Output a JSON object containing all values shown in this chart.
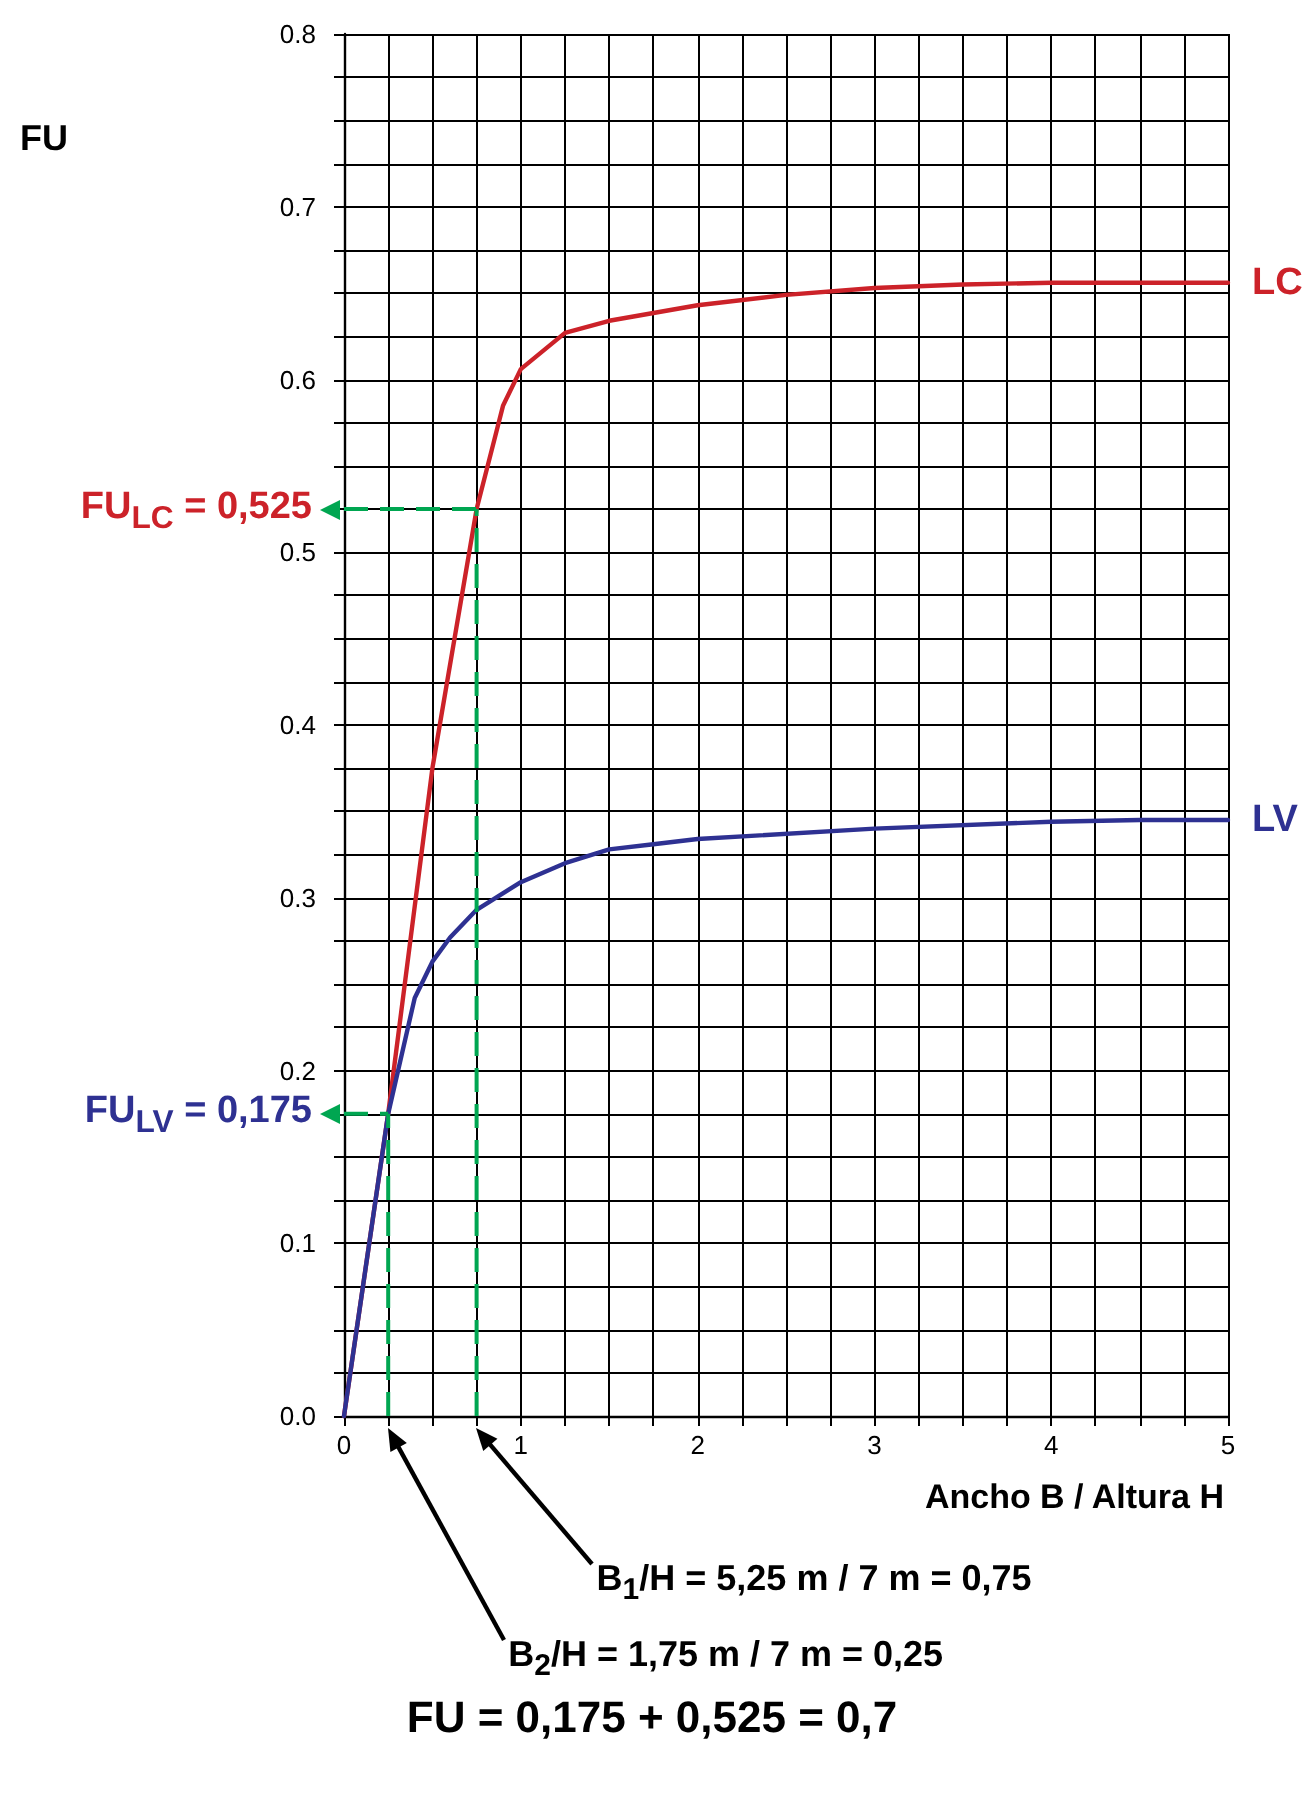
{
  "chart_data": {
    "type": "line",
    "xlabel": "Ancho B / Altura H",
    "xlim": [
      0,
      5
    ],
    "ylim": [
      0,
      0.8
    ],
    "xticks": [
      0,
      {
        "value": 0.25,
        "label": null
      },
      {
        "value": 0.5,
        "label": null
      },
      {
        "value": 0.75,
        "label": null
      },
      1,
      {
        "value": 1.25,
        "label": null
      },
      {
        "value": 1.5,
        "label": null
      },
      {
        "value": 1.75,
        "label": null
      },
      2,
      {
        "value": 2.25,
        "label": null
      },
      {
        "value": 2.5,
        "label": null
      },
      {
        "value": 2.75,
        "label": null
      },
      3,
      {
        "value": 3.25,
        "label": null
      },
      {
        "value": 3.5,
        "label": null
      },
      {
        "value": 3.75,
        "label": null
      },
      4,
      {
        "value": 4.25,
        "label": null
      },
      {
        "value": 4.5,
        "label": null
      },
      {
        "value": 4.75,
        "label": null
      },
      5
    ],
    "yticks": [
      {
        "value": 0,
        "label": "0.0"
      },
      {
        "value": 0.025,
        "label": null
      },
      {
        "value": 0.05,
        "label": null
      },
      {
        "value": 0.075,
        "label": null
      },
      0.1,
      {
        "value": 0.125,
        "label": null
      },
      {
        "value": 0.15,
        "label": null
      },
      {
        "value": 0.175,
        "label": null
      },
      0.2,
      {
        "value": 0.225,
        "label": null
      },
      {
        "value": 0.25,
        "label": null
      },
      {
        "value": 0.275,
        "label": null
      },
      0.3,
      {
        "value": 0.325,
        "label": null
      },
      {
        "value": 0.35,
        "label": null
      },
      {
        "value": 0.375,
        "label": null
      },
      0.4,
      {
        "value": 0.425,
        "label": null
      },
      {
        "value": 0.45,
        "label": null
      },
      {
        "value": 0.475,
        "label": null
      },
      0.5,
      {
        "value": 0.525,
        "label": null
      },
      {
        "value": 0.55,
        "label": null
      },
      {
        "value": 0.575,
        "label": null
      },
      0.6,
      {
        "value": 0.625,
        "label": null
      },
      {
        "value": 0.65,
        "label": null
      },
      {
        "value": 0.675,
        "label": null
      },
      0.7,
      {
        "value": 0.725,
        "label": null
      },
      {
        "value": 0.75,
        "label": null
      },
      {
        "value": 0.775,
        "label": null
      },
      0.8
    ],
    "grid": true,
    "marker": "none",
    "legend": false,
    "series": [
      {
        "name": "LC",
        "color": "#cc2229",
        "x": [
          0,
          0.1,
          0.25,
          0.5,
          0.75,
          0.85,
          0.9,
          1,
          1.25,
          1.5,
          2,
          2.5,
          3,
          3.5,
          4,
          5
        ],
        "values": [
          0,
          0.07,
          0.175,
          0.375,
          0.525,
          0.565,
          0.585,
          0.606,
          0.627,
          0.634,
          0.643,
          0.649,
          0.653,
          0.655,
          0.656,
          0.656
        ]
      },
      {
        "name": "LV",
        "color": "#2e3192",
        "x": [
          0,
          0.1,
          0.25,
          0.4,
          0.5,
          0.6,
          0.75,
          1,
          1.25,
          1.5,
          1.75,
          2,
          3,
          4,
          4.5,
          5
        ],
        "values": [
          0,
          0.07,
          0.175,
          0.242,
          0.263,
          0.277,
          0.293,
          0.309,
          0.32,
          0.328,
          0.331,
          0.334,
          0.34,
          0.344,
          0.345,
          0.345
        ]
      }
    ],
    "ref_lines": [
      {
        "axis": "y",
        "value": 0.525,
        "label": "FU$_{LC}$ = 0,525",
        "color": "#00a651",
        "line_style": "dashed"
      },
      {
        "axis": "y",
        "value": 0.175,
        "label": "FU$_{LV}$ = 0,175",
        "color": "#00a651",
        "line_style": "dashed"
      },
      {
        "axis": "x",
        "value": 0.75,
        "color": "#00a651",
        "line_style": "dashed"
      },
      {
        "axis": "x",
        "value": 0.25,
        "color": "#00a651",
        "line_style": "dashed"
      }
    ],
    "annotations": [
      "B$_{1}$/H = 5,25 m / 7 m = 0,75",
      "B$_{2}$/H = 1,75 m / 7 m = 0,25",
      "FU",
      "FU = 0,175 + 0,525 = 0,7"
    ]
  }
}
